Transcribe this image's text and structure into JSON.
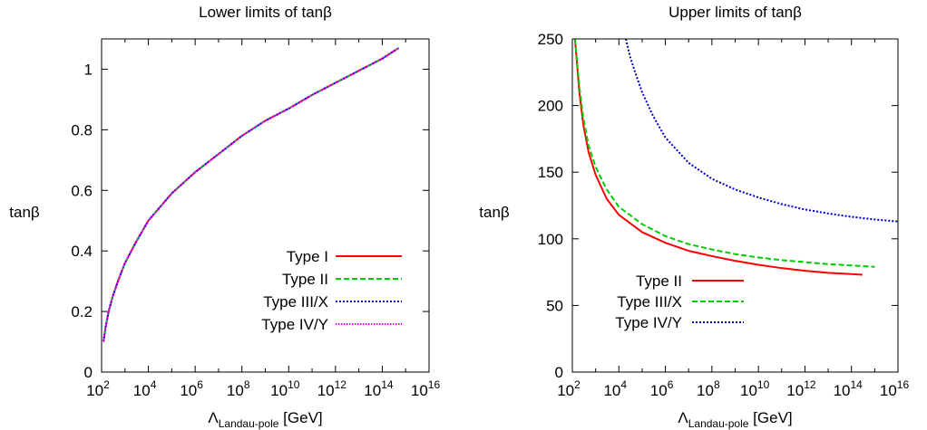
{
  "chart_data": [
    {
      "type": "line",
      "title": "Lower limits of tanβ",
      "xlabel": {
        "symbol": "Λ",
        "subscript": "Landau-pole",
        "unit": "[GeV]"
      },
      "ylabel": "tanβ",
      "x_scale": "log",
      "xlim": [
        100,
        10000000000000000
      ],
      "ylim": [
        0,
        1.1
      ],
      "x_ticks": [
        {
          "base": "10",
          "exp": "2"
        },
        {
          "base": "10",
          "exp": "4"
        },
        {
          "base": "10",
          "exp": "6"
        },
        {
          "base": "10",
          "exp": "8"
        },
        {
          "base": "10",
          "exp": "10"
        },
        {
          "base": "10",
          "exp": "12"
        },
        {
          "base": "10",
          "exp": "14"
        },
        {
          "base": "10",
          "exp": "16"
        }
      ],
      "y_ticks": [
        "0",
        "0.2",
        "0.4",
        "0.6",
        "0.8",
        "1"
      ],
      "y_tick_values": [
        0,
        0.2,
        0.4,
        0.6,
        0.8,
        1
      ],
      "legend_position": "bottom-right",
      "series": [
        {
          "name": "Type I",
          "color": "#ff0000",
          "dash": "solid",
          "x": [
            120,
            150,
            200,
            300,
            500,
            1000,
            3000,
            10000,
            100000,
            1000000,
            10000000,
            100000000,
            1000000000,
            10000000000,
            100000000000,
            1000000000000,
            10000000000000,
            100000000000000,
            500000000000000
          ],
          "y": [
            0.1,
            0.15,
            0.2,
            0.25,
            0.3,
            0.36,
            0.43,
            0.5,
            0.59,
            0.66,
            0.72,
            0.78,
            0.83,
            0.87,
            0.915,
            0.955,
            0.995,
            1.035,
            1.07
          ]
        },
        {
          "name": "Type II",
          "color": "#00cc00",
          "dash": "dashed",
          "x": [
            120,
            150,
            200,
            300,
            500,
            1000,
            3000,
            10000,
            100000,
            1000000,
            10000000,
            100000000,
            1000000000,
            10000000000,
            100000000000,
            1000000000000,
            10000000000000,
            100000000000000,
            500000000000000
          ],
          "y": [
            0.1,
            0.15,
            0.2,
            0.25,
            0.3,
            0.36,
            0.43,
            0.5,
            0.59,
            0.66,
            0.72,
            0.78,
            0.83,
            0.87,
            0.915,
            0.955,
            0.995,
            1.035,
            1.07
          ]
        },
        {
          "name": "Type III/X",
          "color": "#0000cc",
          "dash": "dotted",
          "x": [
            120,
            150,
            200,
            300,
            500,
            1000,
            3000,
            10000,
            100000,
            1000000,
            10000000,
            100000000,
            1000000000,
            10000000000,
            100000000000,
            1000000000000,
            10000000000000,
            100000000000000,
            500000000000000
          ],
          "y": [
            0.1,
            0.15,
            0.2,
            0.25,
            0.3,
            0.36,
            0.43,
            0.5,
            0.59,
            0.66,
            0.72,
            0.78,
            0.83,
            0.87,
            0.915,
            0.955,
            0.995,
            1.035,
            1.07
          ]
        },
        {
          "name": "Type IV/Y",
          "color": "#ff00ff",
          "dash": "dotted-fine",
          "x": [
            120,
            150,
            200,
            300,
            500,
            1000,
            3000,
            10000,
            100000,
            1000000,
            10000000,
            100000000,
            1000000000,
            10000000000,
            100000000000,
            1000000000000,
            10000000000000,
            100000000000000,
            500000000000000
          ],
          "y": [
            0.1,
            0.15,
            0.2,
            0.25,
            0.3,
            0.36,
            0.43,
            0.5,
            0.59,
            0.66,
            0.72,
            0.78,
            0.83,
            0.87,
            0.915,
            0.955,
            0.995,
            1.035,
            1.07
          ]
        }
      ]
    },
    {
      "type": "line",
      "title": "Upper limits of tanβ",
      "xlabel": {
        "symbol": "Λ",
        "subscript": "Landau-pole",
        "unit": "[GeV]"
      },
      "ylabel": "tanβ",
      "x_scale": "log",
      "xlim": [
        100,
        10000000000000000
      ],
      "ylim": [
        0,
        250
      ],
      "x_ticks": [
        {
          "base": "10",
          "exp": "2"
        },
        {
          "base": "10",
          "exp": "4"
        },
        {
          "base": "10",
          "exp": "6"
        },
        {
          "base": "10",
          "exp": "8"
        },
        {
          "base": "10",
          "exp": "10"
        },
        {
          "base": "10",
          "exp": "12"
        },
        {
          "base": "10",
          "exp": "14"
        },
        {
          "base": "10",
          "exp": "16"
        }
      ],
      "y_ticks": [
        "0",
        "50",
        "100",
        "150",
        "200",
        "250"
      ],
      "y_tick_values": [
        0,
        50,
        100,
        150,
        200,
        250
      ],
      "legend_position": "bottom-left",
      "series": [
        {
          "name": "Type II",
          "color": "#ff0000",
          "dash": "solid",
          "x": [
            130,
            200,
            300,
            500,
            1000,
            3000,
            10000,
            100000,
            1000000,
            10000000,
            100000000,
            1000000000,
            10000000000,
            100000000000,
            1000000000000,
            10000000000000,
            100000000000000,
            300000000000000
          ],
          "y": [
            250,
            210,
            185,
            165,
            148,
            130,
            118,
            105,
            97,
            91,
            87,
            83.5,
            80.5,
            78,
            76,
            74.5,
            73.5,
            73
          ]
        },
        {
          "name": "Type III/X",
          "color": "#00cc00",
          "dash": "dashed",
          "x": [
            130,
            200,
            300,
            500,
            1000,
            3000,
            10000,
            100000,
            1000000,
            10000000,
            100000000,
            1000000000,
            10000000000,
            100000000000,
            1000000000000,
            10000000000000,
            100000000000000,
            1000000000000000
          ],
          "y": [
            250,
            214,
            190,
            170,
            154,
            137,
            124,
            111,
            102,
            96,
            92,
            88.5,
            86,
            84,
            82.5,
            81,
            80,
            79
          ]
        },
        {
          "name": "Type IV/Y",
          "color": "#0000cc",
          "dash": "dotted",
          "x": [
            20000,
            30000,
            50000,
            100000,
            300000,
            1000000,
            10000000,
            100000000,
            1000000000,
            10000000000,
            100000000000,
            1000000000000,
            10000000000000,
            100000000000000,
            1000000000000000,
            10000000000000000
          ],
          "y": [
            250,
            237,
            225,
            210,
            192,
            176,
            157,
            145,
            137,
            131,
            126,
            122,
            119,
            116.5,
            114.5,
            113
          ]
        }
      ]
    }
  ]
}
